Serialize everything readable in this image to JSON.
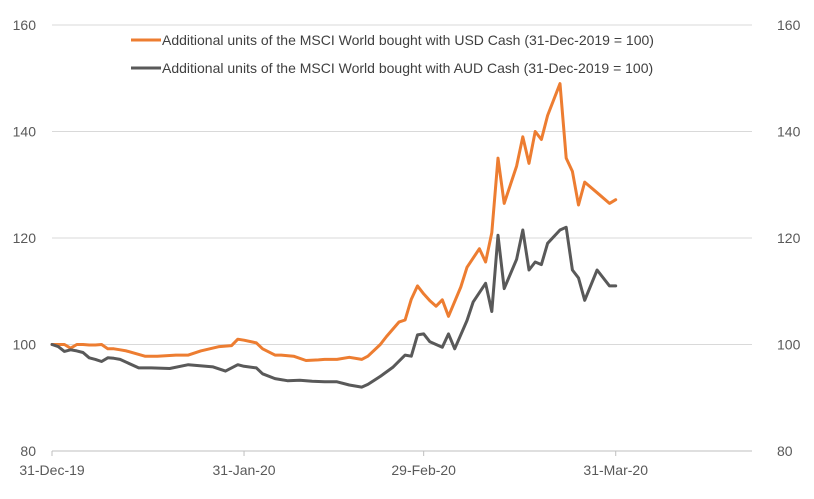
{
  "chart_data": {
    "type": "line",
    "title": "",
    "xlabel": "",
    "ylabel": "",
    "ylim": [
      80,
      160
    ],
    "y_ticks": [
      80,
      100,
      120,
      140,
      160
    ],
    "x_tick_labels": [
      "31-Dec-19",
      "31-Jan-20",
      "29-Feb-20",
      "31-Mar-20"
    ],
    "x_tick_dates": [
      "2019-12-31",
      "2020-01-31",
      "2020-02-29",
      "2020-03-31"
    ],
    "xlim": [
      "2019-12-31",
      "2020-04-22"
    ],
    "grid": "horizontal",
    "legend_position": "top-center",
    "secondary_y_axis": true,
    "series": [
      {
        "name": "Additional units of the MSCI World bought with USD Cash (31-Dec-2019 = 100)",
        "color": "#ED7D31",
        "x": [
          "2019-12-31",
          "2020-01-02",
          "2020-01-03",
          "2020-01-04",
          "2020-01-05",
          "2020-01-06",
          "2020-01-07",
          "2020-01-08",
          "2020-01-09",
          "2020-01-10",
          "2020-01-11",
          "2020-01-12",
          "2020-01-15",
          "2020-01-17",
          "2020-01-20",
          "2020-01-22",
          "2020-01-24",
          "2020-01-27",
          "2020-01-29",
          "2020-01-30",
          "2020-01-31",
          "2020-02-02",
          "2020-02-03",
          "2020-02-05",
          "2020-02-06",
          "2020-02-08",
          "2020-02-10",
          "2020-02-12",
          "2020-02-13",
          "2020-02-15",
          "2020-02-17",
          "2020-02-19",
          "2020-02-20",
          "2020-02-22",
          "2020-02-23",
          "2020-02-25",
          "2020-02-26",
          "2020-02-27",
          "2020-02-28",
          "2020-02-29",
          "2020-03-01",
          "2020-03-02",
          "2020-03-03",
          "2020-03-04",
          "2020-03-06",
          "2020-03-07",
          "2020-03-09",
          "2020-03-10",
          "2020-03-11",
          "2020-03-12",
          "2020-03-13",
          "2020-03-15",
          "2020-03-16",
          "2020-03-17",
          "2020-03-18",
          "2020-03-19",
          "2020-03-20",
          "2020-03-22",
          "2020-03-23",
          "2020-03-24",
          "2020-03-25",
          "2020-03-26",
          "2020-03-28",
          "2020-03-30",
          "2020-03-31"
        ],
        "values": [
          100,
          100,
          99.3,
          100,
          100,
          99.9,
          99.9,
          100,
          99.2,
          99.2,
          99,
          98.8,
          97.8,
          97.8,
          98,
          98,
          98.8,
          99.6,
          99.8,
          101,
          100.8,
          100.3,
          99.2,
          98,
          98,
          97.8,
          97,
          97.1,
          97.2,
          97.2,
          97.6,
          97.2,
          97.8,
          100,
          101.5,
          104.2,
          104.6,
          108.5,
          111,
          109.5,
          108.2,
          107.2,
          108.4,
          105.3,
          110.8,
          114.5,
          118,
          115.5,
          121,
          135,
          126.5,
          133.5,
          139,
          134,
          140,
          138.5,
          143,
          149,
          135,
          132.5,
          126.2,
          130.5,
          128.5,
          126.5,
          127.2
        ]
      },
      {
        "name": "Additional units of the MSCI World bought with AUD Cash (31-Dec-2019 = 100)",
        "color": "#595959",
        "x": [
          "2019-12-31",
          "2020-01-01",
          "2020-01-02",
          "2020-01-03",
          "2020-01-04",
          "2020-01-05",
          "2020-01-06",
          "2020-01-07",
          "2020-01-08",
          "2020-01-09",
          "2020-01-10",
          "2020-01-11",
          "2020-01-14",
          "2020-01-16",
          "2020-01-19",
          "2020-01-22",
          "2020-01-26",
          "2020-01-28",
          "2020-01-30",
          "2020-01-31",
          "2020-02-02",
          "2020-02-03",
          "2020-02-05",
          "2020-02-07",
          "2020-02-09",
          "2020-02-11",
          "2020-02-13",
          "2020-02-15",
          "2020-02-17",
          "2020-02-19",
          "2020-02-20",
          "2020-02-22",
          "2020-02-24",
          "2020-02-26",
          "2020-02-27",
          "2020-02-28",
          "2020-02-29",
          "2020-03-01",
          "2020-03-03",
          "2020-03-04",
          "2020-03-05",
          "2020-03-07",
          "2020-03-08",
          "2020-03-10",
          "2020-03-11",
          "2020-03-12",
          "2020-03-13",
          "2020-03-15",
          "2020-03-16",
          "2020-03-17",
          "2020-03-18",
          "2020-03-19",
          "2020-03-20",
          "2020-03-22",
          "2020-03-23",
          "2020-03-24",
          "2020-03-25",
          "2020-03-26",
          "2020-03-28",
          "2020-03-30",
          "2020-03-31"
        ],
        "values": [
          100,
          99.6,
          98.7,
          99,
          98.8,
          98.5,
          97.5,
          97.2,
          96.8,
          97.5,
          97.4,
          97.2,
          95.6,
          95.6,
          95.5,
          96.2,
          95.8,
          95,
          96.2,
          95.9,
          95.6,
          94.5,
          93.6,
          93.2,
          93.3,
          93.1,
          93,
          93,
          92.4,
          92,
          92.5,
          94,
          95.7,
          98,
          97.8,
          101.8,
          102,
          100.5,
          99.5,
          102,
          99.2,
          104.5,
          108,
          111.5,
          106.2,
          120.5,
          110.5,
          116,
          121.5,
          114,
          115.5,
          115,
          119,
          121.5,
          122,
          114,
          112.5,
          108.3,
          114,
          111,
          111
        ]
      }
    ]
  }
}
